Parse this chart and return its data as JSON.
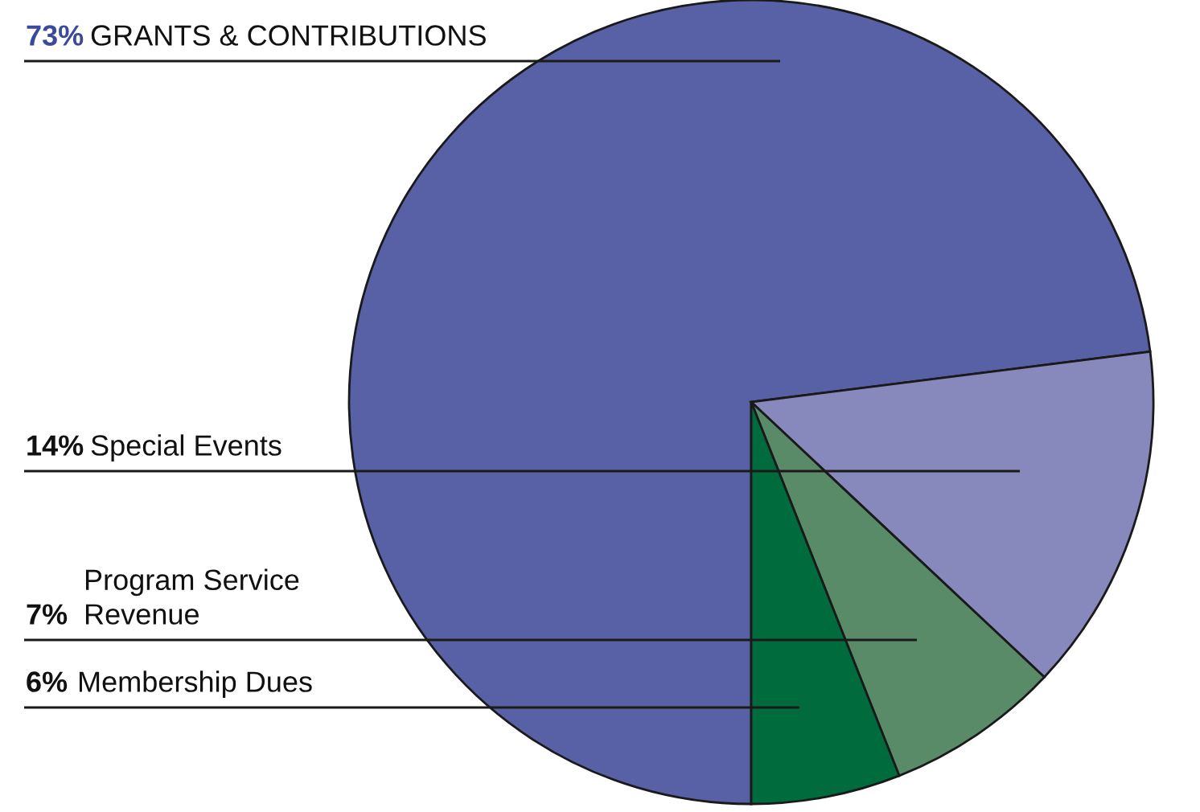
{
  "chart_data": {
    "type": "pie",
    "categories": [
      "GRANTS & CONTRIBUTIONS",
      "Special Events",
      "Program Service\nRevenue",
      "Membership Dues"
    ],
    "values": [
      73,
      14,
      7,
      6
    ],
    "value_labels": [
      "73%",
      "14%",
      "7%",
      "6%"
    ],
    "colors": [
      "#5860a6",
      "#8788bb",
      "#5a8b68",
      "#006b3c"
    ]
  }
}
